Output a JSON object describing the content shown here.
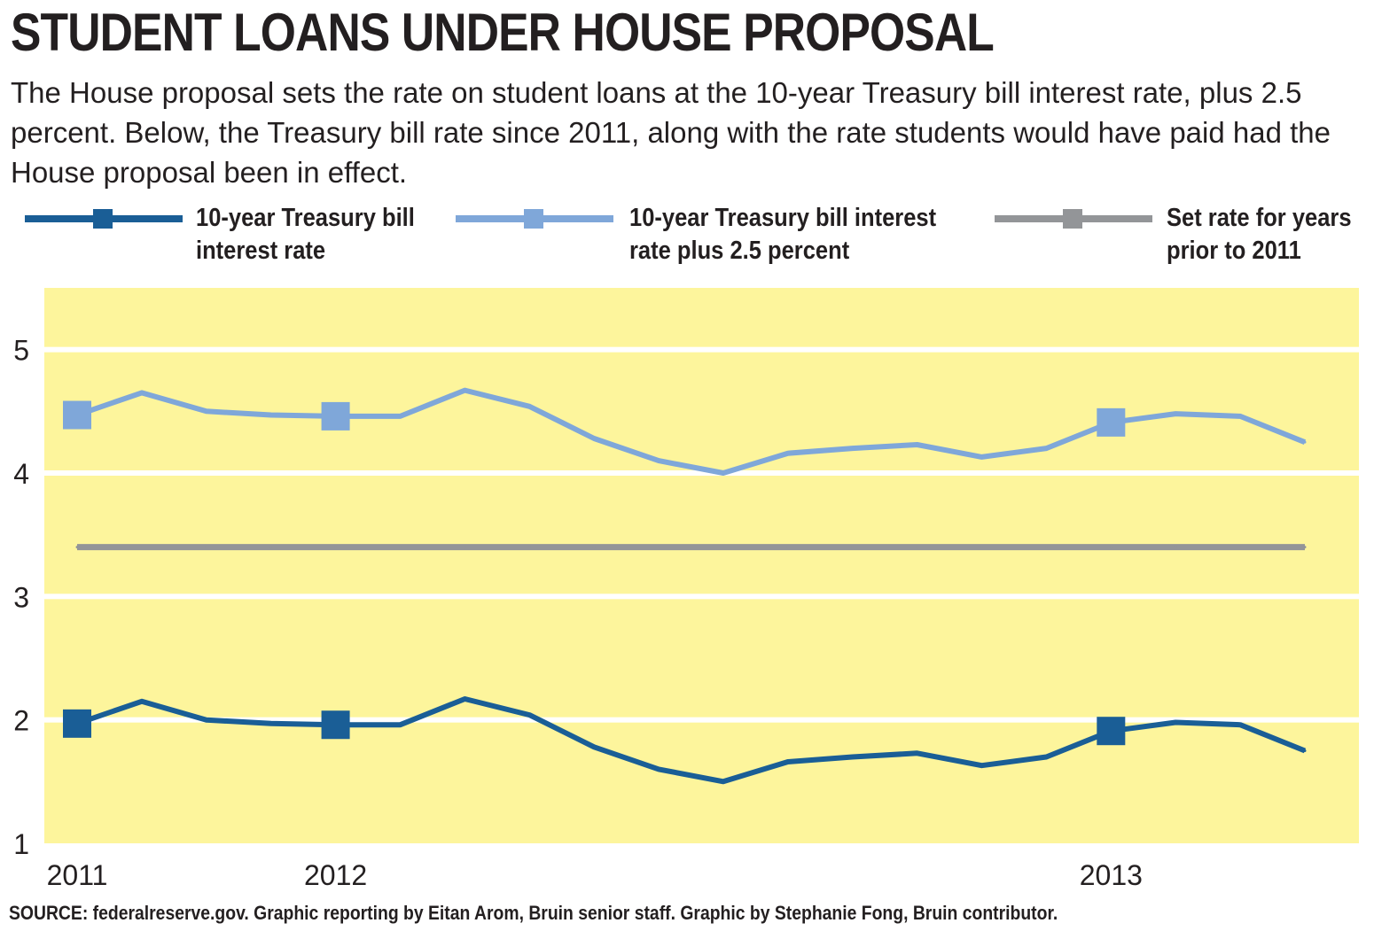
{
  "header": {
    "title": "STUDENT LOANS UNDER HOUSE PROPOSAL",
    "subtitle": "The House proposal sets the rate on student loans at the 10-year Treasury bill interest rate, plus 2.5 percent. Below, the Treasury bill rate since 2011, along with the rate students would have paid had the House proposal been in effect."
  },
  "legend": [
    {
      "line1": "10-year Treasury bill",
      "line2": "interest rate",
      "color": "#1a5e96"
    },
    {
      "line1": "10-year Treasury bill interest",
      "line2": "rate plus 2.5 percent",
      "color": "#7fa7d9"
    },
    {
      "line1": "Set rate for years",
      "line2": "prior to 2011",
      "color": "#939598"
    }
  ],
  "chart_data": {
    "type": "line",
    "title": "STUDENT LOANS UNDER HOUSE PROPOSAL",
    "xlabel": "",
    "ylabel": "",
    "ylim": [
      1,
      5.5
    ],
    "yticks": [
      1,
      2,
      3,
      4,
      5
    ],
    "grid": true,
    "background_color": "#fdf59c",
    "x_tick_labels": [
      {
        "label": "2011",
        "index": 0
      },
      {
        "label": "2012",
        "index": 4
      },
      {
        "label": "2013",
        "index": 16
      }
    ],
    "x": [
      0,
      1,
      2,
      3,
      4,
      5,
      6,
      7,
      8,
      9,
      10,
      11,
      12,
      13,
      14,
      15,
      16,
      17,
      18,
      19
    ],
    "series": [
      {
        "name": "10-year Treasury bill interest rate",
        "color": "#1a5e96",
        "values": [
          1.97,
          2.15,
          2.0,
          1.97,
          1.96,
          1.96,
          2.17,
          2.04,
          1.78,
          1.6,
          1.5,
          1.66,
          1.7,
          1.73,
          1.63,
          1.7,
          1.91,
          1.98,
          1.96,
          1.75
        ],
        "markers": [
          0,
          4,
          16
        ]
      },
      {
        "name": "10-year Treasury bill interest rate plus 2.5 percent",
        "color": "#7fa7d9",
        "values": [
          4.47,
          4.65,
          4.5,
          4.47,
          4.46,
          4.46,
          4.67,
          4.54,
          4.28,
          4.1,
          4.0,
          4.16,
          4.2,
          4.23,
          4.13,
          4.2,
          4.41,
          4.48,
          4.46,
          4.25
        ],
        "markers": [
          0,
          4,
          16
        ]
      },
      {
        "name": "Set rate for years prior to 2011",
        "color": "#939598",
        "values": [
          3.4,
          3.4,
          3.4,
          3.4,
          3.4,
          3.4,
          3.4,
          3.4,
          3.4,
          3.4,
          3.4,
          3.4,
          3.4,
          3.4,
          3.4,
          3.4,
          3.4,
          3.4,
          3.4,
          3.4
        ],
        "markers": []
      }
    ]
  },
  "footer": {
    "source": "SOURCE: federalreserve.gov. Graphic reporting by Eitan Arom, Bruin senior staff. Graphic by Stephanie Fong, Bruin contributor."
  }
}
